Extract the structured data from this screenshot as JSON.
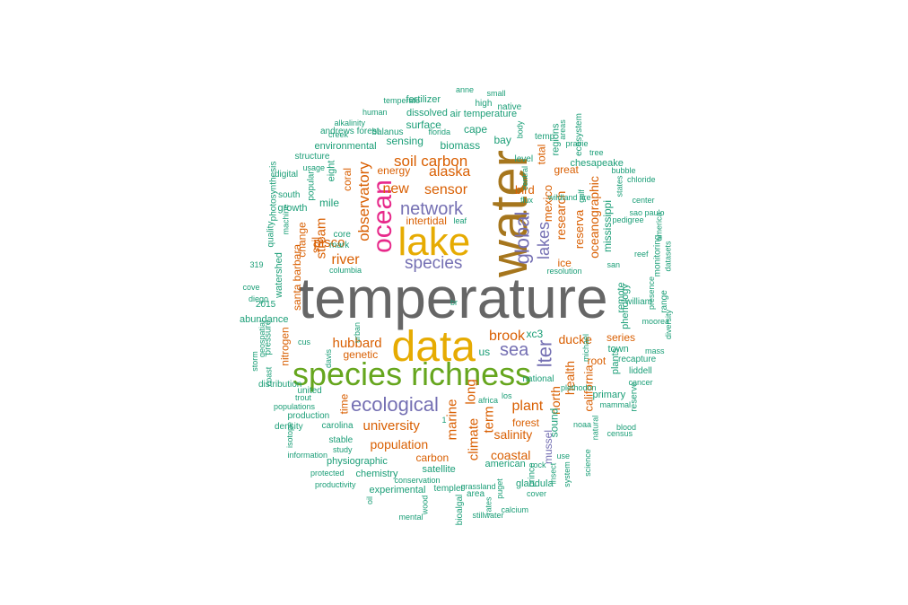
{
  "colors": {
    "gray": "#666666",
    "gold": "#E6AB02",
    "brown": "#A6761D",
    "green": "#66A61E",
    "purple": "#7570B3",
    "magenta": "#E7298A",
    "orange": "#D95F02",
    "teal": "#1B9E77"
  },
  "words": [
    {
      "text": "temperature",
      "color": "gray",
      "weight": 64
    },
    {
      "text": "water",
      "color": "brown",
      "weight": 58,
      "vertical": true
    },
    {
      "text": "data",
      "color": "gold",
      "weight": 48
    },
    {
      "text": "lake",
      "color": "gold",
      "weight": 44
    },
    {
      "text": "species richness",
      "color": "green",
      "weight": 36
    },
    {
      "text": "ocean",
      "color": "magenta",
      "weight": 30,
      "vertical": true
    },
    {
      "text": "ecological",
      "color": "purple",
      "weight": 22
    },
    {
      "text": "global",
      "color": "purple",
      "weight": 22,
      "vertical": true
    },
    {
      "text": "lter",
      "color": "purple",
      "weight": 22,
      "vertical": true
    },
    {
      "text": "network",
      "color": "purple",
      "weight": 20
    },
    {
      "text": "sea",
      "color": "purple",
      "weight": 20
    },
    {
      "text": "species",
      "color": "purple",
      "weight": 19
    },
    {
      "text": "lakes",
      "color": "purple",
      "weight": 18,
      "vertical": true
    },
    {
      "text": "observatory",
      "color": "orange",
      "weight": 17,
      "vertical": true
    },
    {
      "text": "soil carbon",
      "color": "orange",
      "weight": 17
    },
    {
      "text": "sensor",
      "color": "orange",
      "weight": 16
    },
    {
      "text": "alaska",
      "color": "orange",
      "weight": 16
    },
    {
      "text": "new",
      "color": "orange",
      "weight": 16
    },
    {
      "text": "river",
      "color": "orange",
      "weight": 16
    },
    {
      "text": "pisco",
      "color": "orange",
      "weight": 15
    },
    {
      "text": "stream",
      "color": "orange",
      "weight": 15,
      "vertical": true
    },
    {
      "text": "hubbard",
      "color": "orange",
      "weight": 15
    },
    {
      "text": "brook",
      "color": "orange",
      "weight": 16
    },
    {
      "text": "plant",
      "color": "orange",
      "weight": 16
    },
    {
      "text": "university",
      "color": "orange",
      "weight": 15
    },
    {
      "text": "population",
      "color": "orange",
      "weight": 14
    },
    {
      "text": "marine",
      "color": "orange",
      "weight": 15,
      "vertical": true
    },
    {
      "text": "climate",
      "color": "orange",
      "weight": 15,
      "vertical": true
    },
    {
      "text": "long",
      "color": "orange",
      "weight": 15,
      "vertical": true
    },
    {
      "text": "term",
      "color": "orange",
      "weight": 15,
      "vertical": true
    },
    {
      "text": "salinity",
      "color": "orange",
      "weight": 14
    },
    {
      "text": "coastal",
      "color": "orange",
      "weight": 14
    },
    {
      "text": "ducke",
      "color": "orange",
      "weight": 14
    },
    {
      "text": "north",
      "color": "orange",
      "weight": 14,
      "vertical": true
    },
    {
      "text": "health",
      "color": "orange",
      "weight": 14,
      "vertical": true
    },
    {
      "text": "california",
      "color": "orange",
      "weight": 13,
      "vertical": true
    },
    {
      "text": "oceanographic",
      "color": "orange",
      "weight": 14,
      "vertical": true
    },
    {
      "text": "research",
      "color": "orange",
      "weight": 14,
      "vertical": true
    },
    {
      "text": "mexico",
      "color": "orange",
      "weight": 13,
      "vertical": true
    },
    {
      "text": "reserva",
      "color": "orange",
      "weight": 13,
      "vertical": true
    },
    {
      "text": "bird",
      "color": "orange",
      "weight": 13
    },
    {
      "text": "total",
      "color": "orange",
      "weight": 12,
      "vertical": true
    },
    {
      "text": "great",
      "color": "orange",
      "weight": 12
    },
    {
      "text": "energy",
      "color": "orange",
      "weight": 12
    },
    {
      "text": "coral",
      "color": "orange",
      "weight": 12,
      "vertical": true
    },
    {
      "text": "intertidal",
      "color": "orange",
      "weight": 12
    },
    {
      "text": "soil",
      "color": "orange",
      "weight": 12,
      "vertical": true
    },
    {
      "text": "genetic",
      "color": "orange",
      "weight": 12
    },
    {
      "text": "nitrogen",
      "color": "orange",
      "weight": 12,
      "vertical": true
    },
    {
      "text": "time",
      "color": "orange",
      "weight": 12,
      "vertical": true
    },
    {
      "text": "carbon",
      "color": "orange",
      "weight": 12
    },
    {
      "text": "forest",
      "color": "orange",
      "weight": 12
    },
    {
      "text": "root",
      "color": "orange",
      "weight": 12
    },
    {
      "text": "series",
      "color": "orange",
      "weight": 12
    },
    {
      "text": "ice",
      "color": "orange",
      "weight": 12
    },
    {
      "text": "change",
      "color": "orange",
      "weight": 12,
      "vertical": true
    },
    {
      "text": "santa barbara",
      "color": "orange",
      "weight": 12,
      "vertical": true
    },
    {
      "text": "mussel",
      "color": "purple",
      "weight": 12,
      "vertical": true
    },
    {
      "text": "xc3",
      "color": "teal",
      "weight": 12
    },
    {
      "text": "us",
      "color": "teal",
      "weight": 12
    },
    {
      "text": "mississippi",
      "color": "teal",
      "weight": 12,
      "vertical": true
    },
    {
      "text": "sound",
      "color": "teal",
      "weight": 12,
      "vertical": true
    },
    {
      "text": "bay",
      "color": "teal",
      "weight": 12
    },
    {
      "text": "cape",
      "color": "teal",
      "weight": 12
    },
    {
      "text": "biomass",
      "color": "teal",
      "weight": 12
    },
    {
      "text": "sensing",
      "color": "teal",
      "weight": 12
    },
    {
      "text": "surface",
      "color": "teal",
      "weight": 12
    },
    {
      "text": "mile",
      "color": "teal",
      "weight": 12
    },
    {
      "text": "eight",
      "color": "teal",
      "weight": 11,
      "vertical": true
    },
    {
      "text": "environmental",
      "color": "teal",
      "weight": 11
    },
    {
      "text": "dissolved",
      "color": "teal",
      "weight": 11
    },
    {
      "text": "fertilizer",
      "color": "teal",
      "weight": 11
    },
    {
      "text": "air temperature",
      "color": "teal",
      "weight": 11
    },
    {
      "text": "satellite",
      "color": "teal",
      "weight": 11
    },
    {
      "text": "physiographic",
      "color": "teal",
      "weight": 11
    },
    {
      "text": "experimental",
      "color": "teal",
      "weight": 11
    },
    {
      "text": "chemistry",
      "color": "teal",
      "weight": 11
    },
    {
      "text": "glandula",
      "color": "teal",
      "weight": 11
    },
    {
      "text": "american",
      "color": "teal",
      "weight": 11
    },
    {
      "text": "town",
      "color": "teal",
      "weight": 11
    },
    {
      "text": "abundance",
      "color": "teal",
      "weight": 11
    },
    {
      "text": "watershed",
      "color": "teal",
      "weight": 11,
      "vertical": true
    },
    {
      "text": "remote",
      "color": "teal",
      "weight": 11,
      "vertical": true
    },
    {
      "text": "phenology",
      "color": "teal",
      "weight": 11,
      "vertical": true
    },
    {
      "text": "primary",
      "color": "teal",
      "weight": 11
    },
    {
      "text": "plants",
      "color": "teal",
      "weight": 11,
      "vertical": true
    },
    {
      "text": "popular",
      "color": "teal",
      "weight": 10,
      "vertical": true
    },
    {
      "text": "growth",
      "color": "teal",
      "weight": 11
    },
    {
      "text": "south",
      "color": "teal",
      "weight": 10
    },
    {
      "text": "digital",
      "color": "teal",
      "weight": 10
    },
    {
      "text": "structure",
      "color": "teal",
      "weight": 10
    },
    {
      "text": "usage",
      "color": "teal",
      "weight": 9
    },
    {
      "text": "creek",
      "color": "teal",
      "weight": 9
    },
    {
      "text": "human",
      "color": "teal",
      "weight": 9
    },
    {
      "text": "temperate",
      "color": "teal",
      "weight": 9
    },
    {
      "text": "alkalinity",
      "color": "teal",
      "weight": 9
    },
    {
      "text": "andrews forest",
      "color": "teal",
      "weight": 10
    },
    {
      "text": "balanus",
      "color": "teal",
      "weight": 10
    },
    {
      "text": "florida",
      "color": "teal",
      "weight": 9
    },
    {
      "text": "high",
      "color": "teal",
      "weight": 10
    },
    {
      "text": "native",
      "color": "teal",
      "weight": 10
    },
    {
      "text": "small",
      "color": "teal",
      "weight": 9
    },
    {
      "text": "anne",
      "color": "teal",
      "weight": 9
    },
    {
      "text": "body",
      "color": "teal",
      "weight": 9,
      "vertical": true
    },
    {
      "text": "level",
      "color": "teal",
      "weight": 10
    },
    {
      "text": "central",
      "color": "teal",
      "weight": 9,
      "vertical": true
    },
    {
      "text": "flux",
      "color": "teal",
      "weight": 9
    },
    {
      "text": "temp",
      "color": "teal",
      "weight": 10
    },
    {
      "text": "regions",
      "color": "teal",
      "weight": 11,
      "vertical": true
    },
    {
      "text": "areas",
      "color": "teal",
      "weight": 9,
      "vertical": true
    },
    {
      "text": "ecosystem",
      "color": "teal",
      "weight": 10,
      "vertical": true
    },
    {
      "text": "prairie",
      "color": "teal",
      "weight": 9
    },
    {
      "text": "tree",
      "color": "teal",
      "weight": 9
    },
    {
      "text": "chesapeake",
      "color": "teal",
      "weight": 11
    },
    {
      "text": "bubble",
      "color": "teal",
      "weight": 9
    },
    {
      "text": "chloride",
      "color": "teal",
      "weight": 9
    },
    {
      "text": "wildland fire",
      "color": "teal",
      "weight": 9
    },
    {
      "text": "gulf",
      "color": "teal",
      "weight": 9,
      "vertical": true
    },
    {
      "text": "states",
      "color": "teal",
      "weight": 9,
      "vertical": true
    },
    {
      "text": "center",
      "color": "teal",
      "weight": 9
    },
    {
      "text": "sao paulo",
      "color": "teal",
      "weight": 9
    },
    {
      "text": "pedigree",
      "color": "teal",
      "weight": 9
    },
    {
      "text": "america",
      "color": "teal",
      "weight": 9,
      "vertical": true
    },
    {
      "text": "resolution",
      "color": "teal",
      "weight": 9
    },
    {
      "text": "san",
      "color": "teal",
      "weight": 9
    },
    {
      "text": "reef",
      "color": "teal",
      "weight": 9
    },
    {
      "text": "monitoring",
      "color": "teal",
      "weight": 10,
      "vertical": true
    },
    {
      "text": "datasets",
      "color": "teal",
      "weight": 9,
      "vertical": true
    },
    {
      "text": "presence",
      "color": "teal",
      "weight": 9,
      "vertical": true
    },
    {
      "text": "william",
      "color": "teal",
      "weight": 10
    },
    {
      "text": "range",
      "color": "teal",
      "weight": 10,
      "vertical": true
    },
    {
      "text": "moorea",
      "color": "teal",
      "weight": 9
    },
    {
      "text": "diversity",
      "color": "teal",
      "weight": 9,
      "vertical": true
    },
    {
      "text": "michael",
      "color": "teal",
      "weight": 9,
      "vertical": true
    },
    {
      "text": "mass",
      "color": "teal",
      "weight": 9
    },
    {
      "text": "recapture",
      "color": "teal",
      "weight": 10
    },
    {
      "text": "liddell",
      "color": "teal",
      "weight": 10
    },
    {
      "text": "cancer",
      "color": "teal",
      "weight": 9
    },
    {
      "text": "plethodon",
      "color": "teal",
      "weight": 9
    },
    {
      "text": "reserve",
      "color": "teal",
      "weight": 10,
      "vertical": true
    },
    {
      "text": "mammal",
      "color": "teal",
      "weight": 9
    },
    {
      "text": "blood",
      "color": "teal",
      "weight": 9
    },
    {
      "text": "census",
      "color": "teal",
      "weight": 9
    },
    {
      "text": "noaa",
      "color": "teal",
      "weight": 9
    },
    {
      "text": "natural",
      "color": "teal",
      "weight": 9,
      "vertical": true
    },
    {
      "text": "science",
      "color": "teal",
      "weight": 9,
      "vertical": true
    },
    {
      "text": "system",
      "color": "teal",
      "weight": 9,
      "vertical": true
    },
    {
      "text": "insect",
      "color": "teal",
      "weight": 9,
      "vertical": true
    },
    {
      "text": "use",
      "color": "teal",
      "weight": 9
    },
    {
      "text": "rock",
      "color": "teal",
      "weight": 9
    },
    {
      "text": "prince",
      "color": "teal",
      "weight": 10,
      "vertical": true
    },
    {
      "text": "cover",
      "color": "teal",
      "weight": 9
    },
    {
      "text": "calcium",
      "color": "teal",
      "weight": 9
    },
    {
      "text": "puget",
      "color": "teal",
      "weight": 9,
      "vertical": true
    },
    {
      "text": "rates",
      "color": "teal",
      "weight": 9,
      "vertical": true
    },
    {
      "text": "stillwater",
      "color": "teal",
      "weight": 9
    },
    {
      "text": "grassland",
      "color": "teal",
      "weight": 9
    },
    {
      "text": "area",
      "color": "teal",
      "weight": 10
    },
    {
      "text": "templer",
      "color": "teal",
      "weight": 10
    },
    {
      "text": "bioalgal",
      "color": "teal",
      "weight": 10,
      "vertical": true
    },
    {
      "text": "wood",
      "color": "teal",
      "weight": 9,
      "vertical": true
    },
    {
      "text": "mental",
      "color": "teal",
      "weight": 9
    },
    {
      "text": "conservation",
      "color": "teal",
      "weight": 9
    },
    {
      "text": "national",
      "color": "teal",
      "weight": 10
    },
    {
      "text": "los",
      "color": "teal",
      "weight": 9
    },
    {
      "text": "africa",
      "color": "teal",
      "weight": 9
    },
    {
      "text": "1",
      "color": "teal",
      "weight": 9
    },
    {
      "text": "oil",
      "color": "teal",
      "weight": 9,
      "vertical": true
    },
    {
      "text": "productivity",
      "color": "teal",
      "weight": 9
    },
    {
      "text": "protected",
      "color": "teal",
      "weight": 9
    },
    {
      "text": "information",
      "color": "teal",
      "weight": 9
    },
    {
      "text": "isotope",
      "color": "teal",
      "weight": 9,
      "vertical": true
    },
    {
      "text": "study",
      "color": "teal",
      "weight": 9
    },
    {
      "text": "stable",
      "color": "teal",
      "weight": 10
    },
    {
      "text": "carolina",
      "color": "teal",
      "weight": 10
    },
    {
      "text": "density",
      "color": "teal",
      "weight": 10
    },
    {
      "text": "production",
      "color": "teal",
      "weight": 10
    },
    {
      "text": "populations",
      "color": "teal",
      "weight": 9
    },
    {
      "text": "trout",
      "color": "teal",
      "weight": 9
    },
    {
      "text": "united",
      "color": "teal",
      "weight": 10
    },
    {
      "text": "distribution",
      "color": "teal",
      "weight": 10
    },
    {
      "text": "coast",
      "color": "teal",
      "weight": 9,
      "vertical": true
    },
    {
      "text": "storm",
      "color": "teal",
      "weight": 9,
      "vertical": true
    },
    {
      "text": "geospatial",
      "color": "teal",
      "weight": 9,
      "vertical": true
    },
    {
      "text": "pressure",
      "color": "teal",
      "weight": 10,
      "vertical": true
    },
    {
      "text": "davis",
      "color": "teal",
      "weight": 9,
      "vertical": true
    },
    {
      "text": "cus",
      "color": "teal",
      "weight": 9
    },
    {
      "text": "urban",
      "color": "teal",
      "weight": 9,
      "vertical": true
    },
    {
      "text": "columbia",
      "color": "teal",
      "weight": 9
    },
    {
      "text": "mark",
      "color": "teal",
      "weight": 10
    },
    {
      "text": "core",
      "color": "teal",
      "weight": 10
    },
    {
      "text": "2015",
      "color": "teal",
      "weight": 10
    },
    {
      "text": "diego",
      "color": "teal",
      "weight": 9
    },
    {
      "text": "cove",
      "color": "teal",
      "weight": 9
    },
    {
      "text": "319",
      "color": "teal",
      "weight": 9
    },
    {
      "text": "quality",
      "color": "teal",
      "weight": 10,
      "vertical": true
    },
    {
      "text": "photosynthesis",
      "color": "teal",
      "weight": 10,
      "vertical": true
    },
    {
      "text": "machine",
      "color": "teal",
      "weight": 9,
      "vertical": true
    },
    {
      "text": "leaf",
      "color": "teal",
      "weight": 9
    },
    {
      "text": "br",
      "color": "teal",
      "weight": 9
    }
  ]
}
